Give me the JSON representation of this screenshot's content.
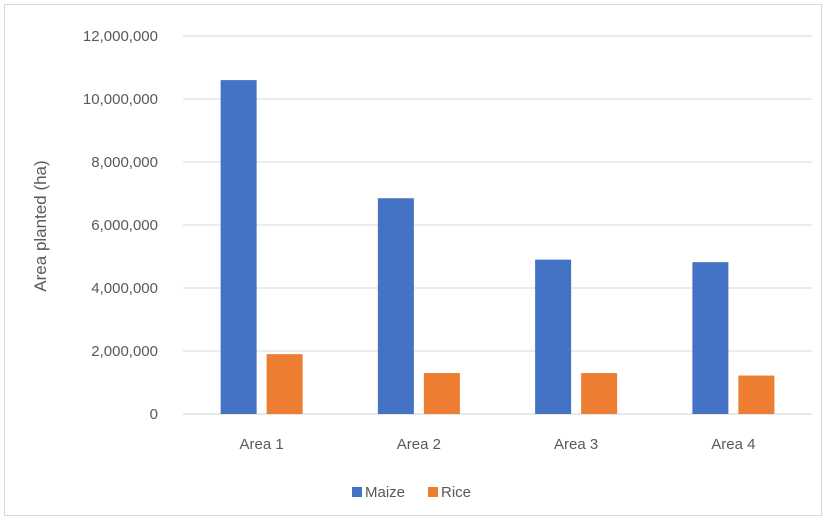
{
  "chart_data": {
    "type": "bar",
    "categories": [
      "Area 1",
      "Area 2",
      "Area 3",
      "Area 4"
    ],
    "series": [
      {
        "name": "Maize",
        "color": "#4472C4",
        "values": [
          10600000,
          6850000,
          4900000,
          4820000
        ]
      },
      {
        "name": "Rice",
        "color": "#ED7D31",
        "values": [
          1900000,
          1300000,
          1300000,
          1220000
        ]
      }
    ],
    "title": "",
    "xlabel": "",
    "ylabel": "Area planted  (ha)",
    "ylim": [
      0,
      12000000
    ],
    "y_ticks": [
      "0",
      "2,000,000",
      "4,000,000",
      "6,000,000",
      "8,000,000",
      "10,000,000",
      "12,000,000"
    ],
    "grid": true,
    "legend_position": "bottom"
  }
}
